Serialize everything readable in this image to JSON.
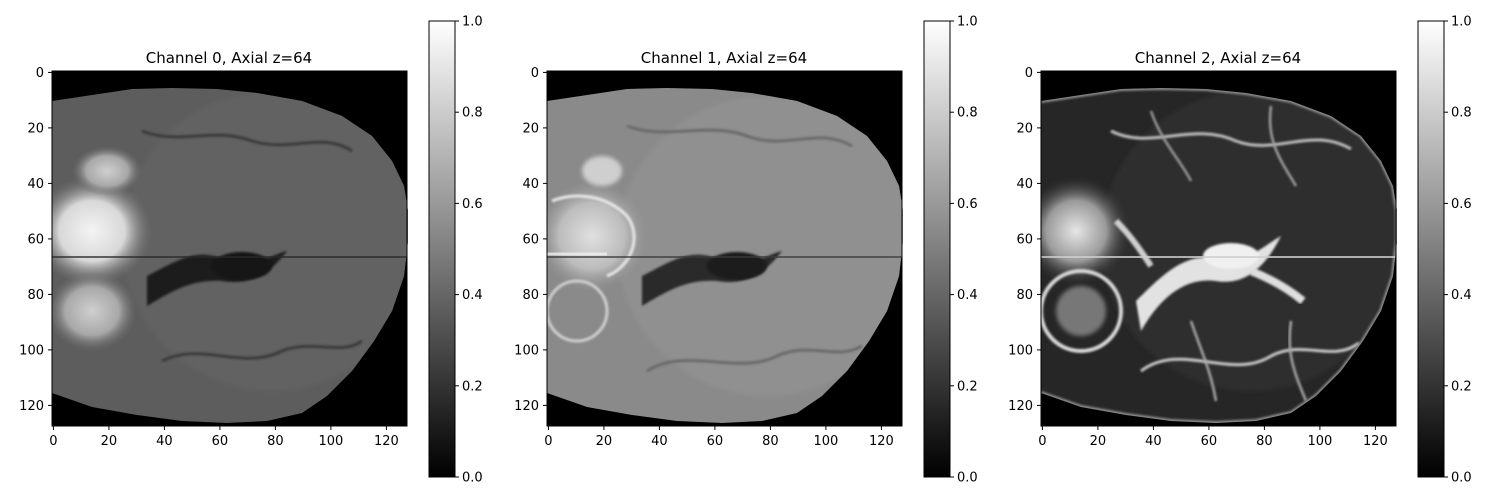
{
  "figure": {
    "panels": [
      {
        "title": "Channel 0, Axial z=64",
        "image_kind": "mri-flair-axial-slice",
        "x_ticks": [
          "0",
          "20",
          "40",
          "60",
          "80",
          "100",
          "120"
        ],
        "y_ticks": [
          "0",
          "20",
          "40",
          "60",
          "80",
          "100",
          "120"
        ],
        "colorbar": {
          "ticks": [
            "0.0",
            "0.2",
            "0.4",
            "0.6",
            "0.8",
            "1.0"
          ],
          "colormap": "gray",
          "min": 0.0,
          "max": 1.0
        }
      },
      {
        "title": "Channel 1, Axial z=64",
        "image_kind": "mri-t1ce-axial-slice",
        "x_ticks": [
          "0",
          "20",
          "40",
          "60",
          "80",
          "100",
          "120"
        ],
        "y_ticks": [
          "0",
          "20",
          "40",
          "60",
          "80",
          "100",
          "120"
        ],
        "colorbar": {
          "ticks": [
            "0.0",
            "0.2",
            "0.4",
            "0.6",
            "0.8",
            "1.0"
          ],
          "colormap": "gray",
          "min": 0.0,
          "max": 1.0
        }
      },
      {
        "title": "Channel 2, Axial z=64",
        "image_kind": "mri-t2-axial-slice",
        "x_ticks": [
          "0",
          "20",
          "40",
          "60",
          "80",
          "100",
          "120"
        ],
        "y_ticks": [
          "0",
          "20",
          "40",
          "60",
          "80",
          "100",
          "120"
        ],
        "colorbar": {
          "ticks": [
            "0.0",
            "0.2",
            "0.4",
            "0.6",
            "0.8",
            "1.0"
          ],
          "colormap": "gray",
          "min": 0.0,
          "max": 1.0
        }
      }
    ]
  }
}
